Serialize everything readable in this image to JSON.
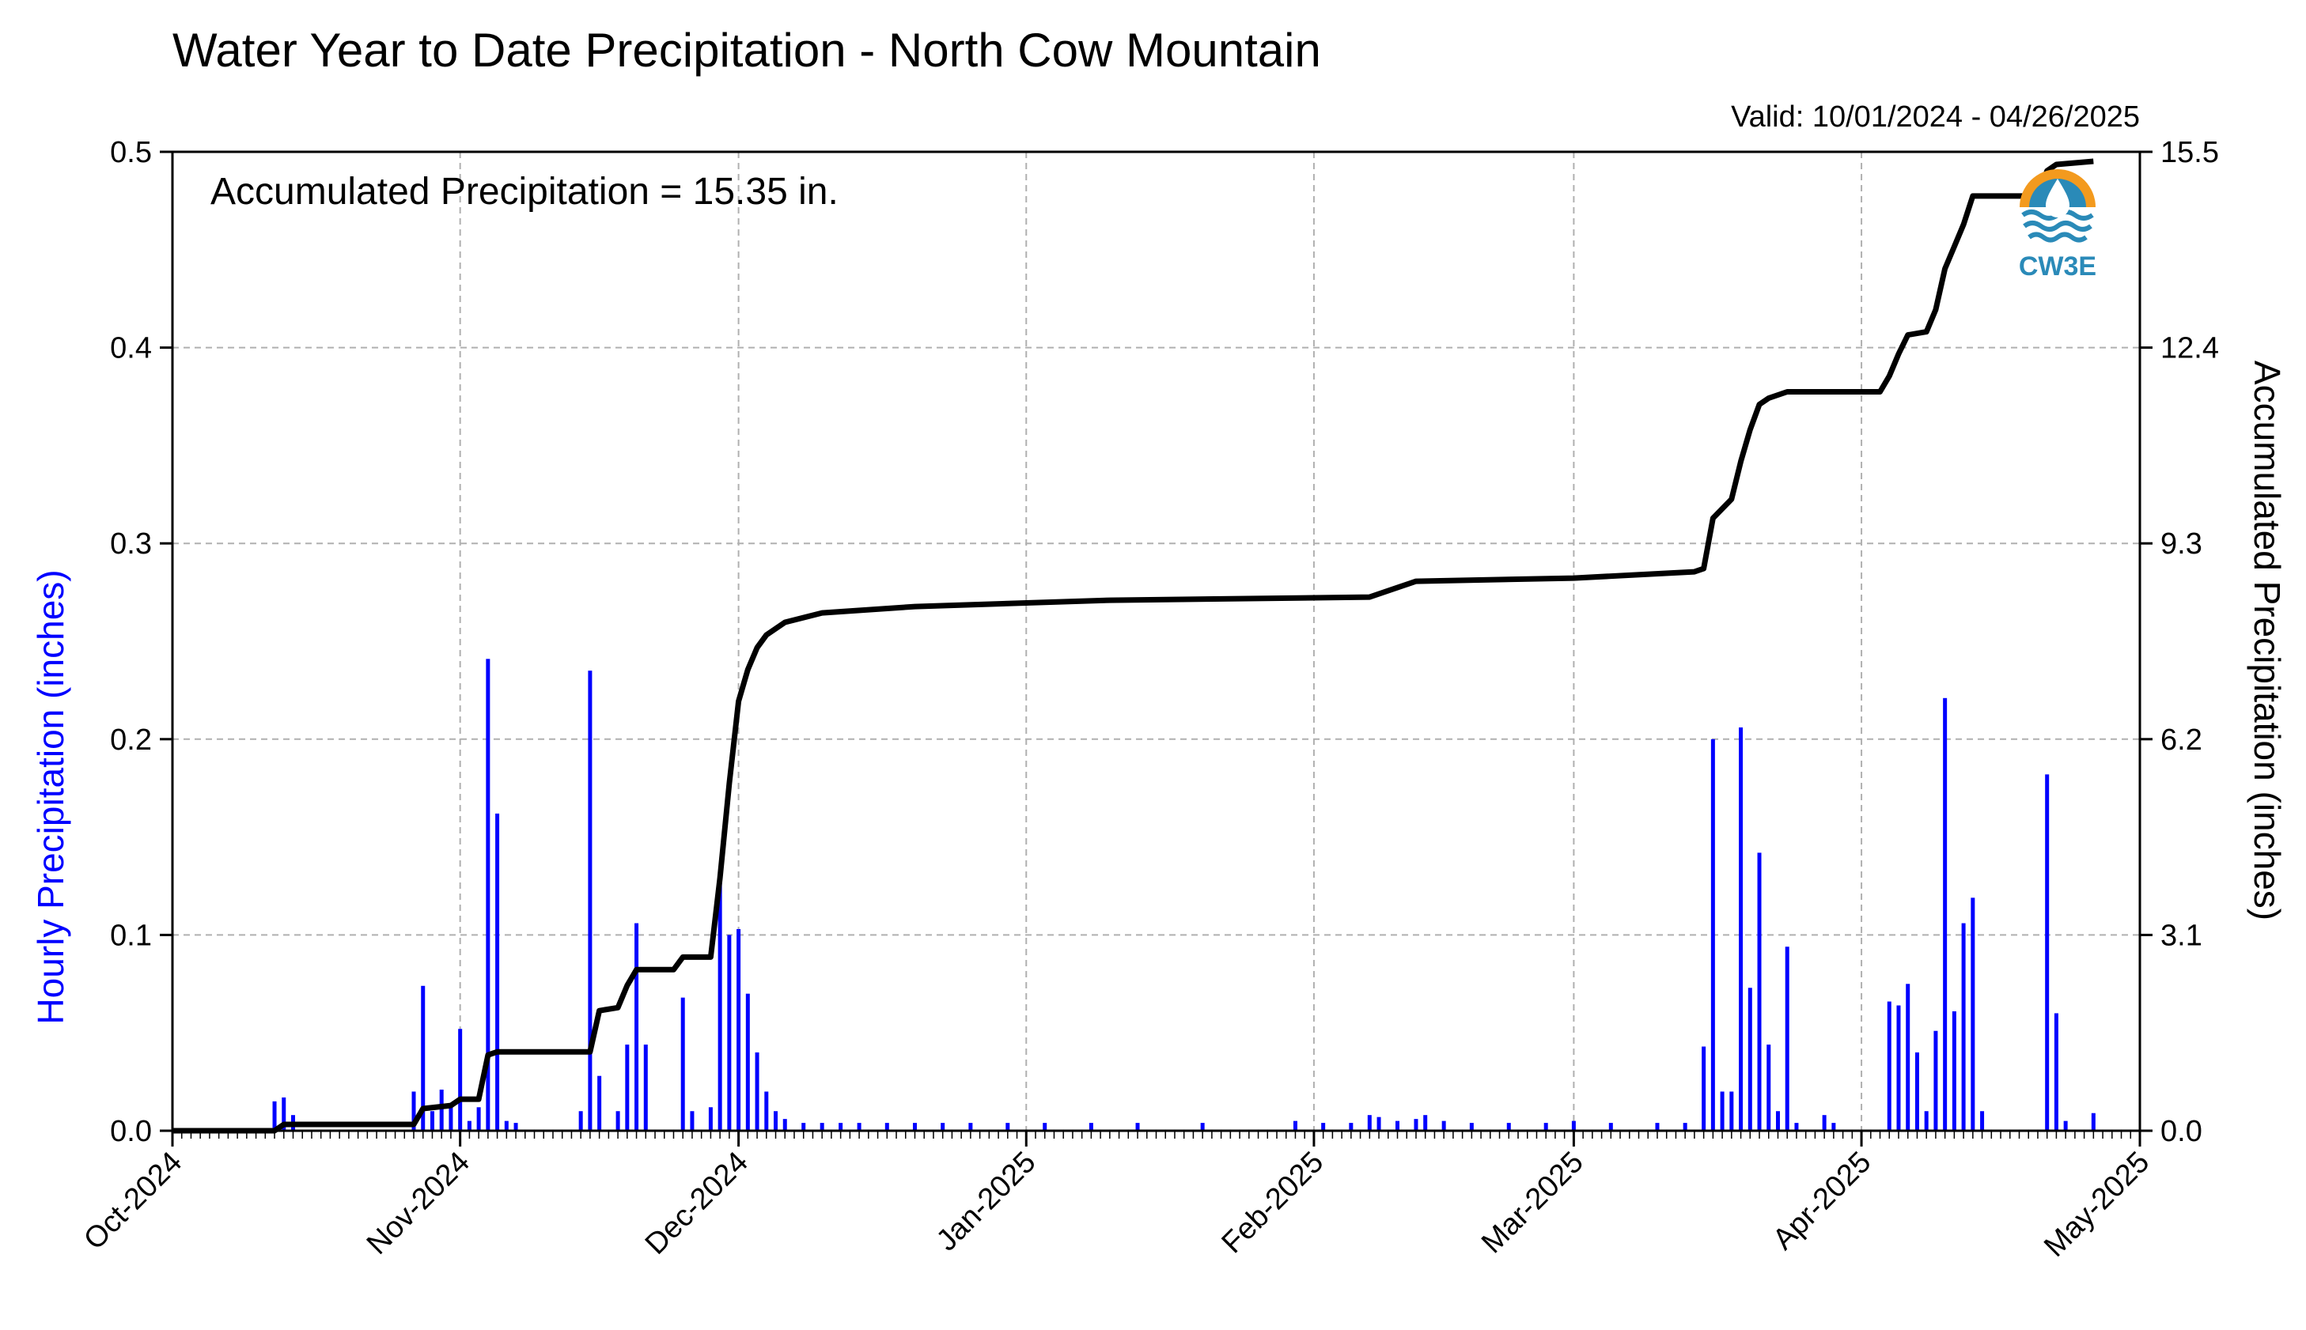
{
  "chart_data": {
    "type": "bar",
    "title": "Water Year to Date Precipitation - North Cow Mountain",
    "subtitle": "Valid: 10/01/2024 - 04/26/2025",
    "annotation": "Accumulated Precipitation = 15.35 in.",
    "logo_text": "CW3E",
    "ylabel_left": "Hourly Precipitation (inches)",
    "ylabel_right": "Accumulated Precipitation (inches)",
    "ylim_left": [
      0,
      0.5
    ],
    "ylim_right": [
      0,
      15.5
    ],
    "xlim": [
      "2024-10-01",
      "2025-05-01"
    ],
    "grid": true,
    "colors": {
      "hourly": "#0000ff",
      "accumulated": "#000000",
      "ylabel_left": "#0000ff",
      "grid": "#b0b0b0",
      "logo_blue": "#2a8ab8",
      "logo_orange": "#f39a1e"
    },
    "x_ticks": [
      "Oct-2024",
      "Nov-2024",
      "Dec-2024",
      "Jan-2025",
      "Feb-2025",
      "Mar-2025",
      "Apr-2025",
      "May-2025"
    ],
    "y_ticks_left": [
      "0.0",
      "0.1",
      "0.2",
      "0.3",
      "0.4",
      "0.5"
    ],
    "y_ticks_right": [
      "0.0",
      "3.1",
      "6.2",
      "9.3",
      "12.4",
      "15.5"
    ],
    "series": [
      {
        "name": "Hourly Precipitation",
        "type": "bar",
        "axis": "left",
        "points": [
          [
            "2024-10-12",
            0.015
          ],
          [
            "2024-10-13",
            0.017
          ],
          [
            "2024-10-14",
            0.008
          ],
          [
            "2024-10-27",
            0.02
          ],
          [
            "2024-10-28",
            0.074
          ],
          [
            "2024-10-29",
            0.01
          ],
          [
            "2024-10-30",
            0.021
          ],
          [
            "2024-10-31",
            0.012
          ],
          [
            "2024-11-01",
            0.052
          ],
          [
            "2024-11-02",
            0.005
          ],
          [
            "2024-11-03",
            0.012
          ],
          [
            "2024-11-04",
            0.241
          ],
          [
            "2024-11-05",
            0.162
          ],
          [
            "2024-11-06",
            0.005
          ],
          [
            "2024-11-07",
            0.004
          ],
          [
            "2024-11-14",
            0.01
          ],
          [
            "2024-11-15",
            0.235
          ],
          [
            "2024-11-16",
            0.028
          ],
          [
            "2024-11-18",
            0.01
          ],
          [
            "2024-11-19",
            0.044
          ],
          [
            "2024-11-20",
            0.106
          ],
          [
            "2024-11-21",
            0.044
          ],
          [
            "2024-11-25",
            0.068
          ],
          [
            "2024-11-26",
            0.01
          ],
          [
            "2024-11-28",
            0.012
          ],
          [
            "2024-11-29",
            0.127
          ],
          [
            "2024-11-30",
            0.1
          ],
          [
            "2024-12-01",
            0.103
          ],
          [
            "2024-12-02",
            0.07
          ],
          [
            "2024-12-03",
            0.04
          ],
          [
            "2024-12-04",
            0.02
          ],
          [
            "2024-12-05",
            0.01
          ],
          [
            "2024-12-06",
            0.006
          ],
          [
            "2024-12-08",
            0.004
          ],
          [
            "2024-12-10",
            0.004
          ],
          [
            "2024-12-12",
            0.004
          ],
          [
            "2024-12-14",
            0.004
          ],
          [
            "2024-12-17",
            0.004
          ],
          [
            "2024-12-20",
            0.004
          ],
          [
            "2024-12-23",
            0.004
          ],
          [
            "2024-12-26",
            0.004
          ],
          [
            "2024-12-30",
            0.004
          ],
          [
            "2025-01-03",
            0.004
          ],
          [
            "2025-01-08",
            0.004
          ],
          [
            "2025-01-13",
            0.004
          ],
          [
            "2025-01-20",
            0.004
          ],
          [
            "2025-01-30",
            0.005
          ],
          [
            "2025-02-02",
            0.004
          ],
          [
            "2025-02-05",
            0.004
          ],
          [
            "2025-02-07",
            0.008
          ],
          [
            "2025-02-08",
            0.007
          ],
          [
            "2025-02-10",
            0.005
          ],
          [
            "2025-02-12",
            0.006
          ],
          [
            "2025-02-13",
            0.008
          ],
          [
            "2025-02-15",
            0.005
          ],
          [
            "2025-02-18",
            0.004
          ],
          [
            "2025-02-22",
            0.004
          ],
          [
            "2025-02-26",
            0.004
          ],
          [
            "2025-03-01",
            0.005
          ],
          [
            "2025-03-05",
            0.004
          ],
          [
            "2025-03-10",
            0.004
          ],
          [
            "2025-03-13",
            0.004
          ],
          [
            "2025-03-15",
            0.043
          ],
          [
            "2025-03-16",
            0.2
          ],
          [
            "2025-03-17",
            0.02
          ],
          [
            "2025-03-18",
            0.02
          ],
          [
            "2025-03-19",
            0.206
          ],
          [
            "2025-03-20",
            0.073
          ],
          [
            "2025-03-21",
            0.142
          ],
          [
            "2025-03-22",
            0.044
          ],
          [
            "2025-03-23",
            0.01
          ],
          [
            "2025-03-24",
            0.094
          ],
          [
            "2025-03-25",
            0.004
          ],
          [
            "2025-03-28",
            0.008
          ],
          [
            "2025-03-29",
            0.004
          ],
          [
            "2025-04-04",
            0.066
          ],
          [
            "2025-04-05",
            0.064
          ],
          [
            "2025-04-06",
            0.075
          ],
          [
            "2025-04-07",
            0.04
          ],
          [
            "2025-04-08",
            0.01
          ],
          [
            "2025-04-09",
            0.051
          ],
          [
            "2025-04-10",
            0.221
          ],
          [
            "2025-04-11",
            0.061
          ],
          [
            "2025-04-12",
            0.106
          ],
          [
            "2025-04-13",
            0.119
          ],
          [
            "2025-04-14",
            0.01
          ],
          [
            "2025-04-21",
            0.182
          ],
          [
            "2025-04-22",
            0.06
          ],
          [
            "2025-04-23",
            0.005
          ],
          [
            "2025-04-26",
            0.009
          ]
        ]
      },
      {
        "name": "Accumulated Precipitation",
        "type": "line",
        "axis": "right",
        "points": [
          [
            "2024-10-01",
            0.0
          ],
          [
            "2024-10-12",
            0.0
          ],
          [
            "2024-10-13",
            0.1
          ],
          [
            "2024-10-27",
            0.1
          ],
          [
            "2024-10-28",
            0.35
          ],
          [
            "2024-10-31",
            0.4
          ],
          [
            "2024-11-01",
            0.5
          ],
          [
            "2024-11-03",
            0.5
          ],
          [
            "2024-11-04",
            1.2
          ],
          [
            "2024-11-05",
            1.25
          ],
          [
            "2024-11-15",
            1.25
          ],
          [
            "2024-11-16",
            1.9
          ],
          [
            "2024-11-18",
            1.95
          ],
          [
            "2024-11-19",
            2.3
          ],
          [
            "2024-11-20",
            2.55
          ],
          [
            "2024-11-24",
            2.55
          ],
          [
            "2024-11-25",
            2.75
          ],
          [
            "2024-11-28",
            2.75
          ],
          [
            "2024-11-29",
            4.0
          ],
          [
            "2024-11-30",
            5.5
          ],
          [
            "2024-12-01",
            6.8
          ],
          [
            "2024-12-02",
            7.3
          ],
          [
            "2024-12-03",
            7.65
          ],
          [
            "2024-12-04",
            7.85
          ],
          [
            "2024-12-06",
            8.05
          ],
          [
            "2024-12-10",
            8.2
          ],
          [
            "2024-12-20",
            8.3
          ],
          [
            "2025-01-10",
            8.4
          ],
          [
            "2025-02-07",
            8.45
          ],
          [
            "2025-02-10",
            8.6
          ],
          [
            "2025-02-12",
            8.7
          ],
          [
            "2025-03-01",
            8.75
          ],
          [
            "2025-03-14",
            8.85
          ],
          [
            "2025-03-15",
            8.9
          ],
          [
            "2025-03-16",
            9.7
          ],
          [
            "2025-03-17",
            9.85
          ],
          [
            "2025-03-18",
            10.0
          ],
          [
            "2025-03-19",
            10.6
          ],
          [
            "2025-03-20",
            11.1
          ],
          [
            "2025-03-21",
            11.5
          ],
          [
            "2025-03-22",
            11.6
          ],
          [
            "2025-03-23",
            11.65
          ],
          [
            "2025-03-24",
            11.7
          ],
          [
            "2025-03-25",
            11.7
          ],
          [
            "2025-04-03",
            11.7
          ],
          [
            "2025-04-04",
            11.95
          ],
          [
            "2025-04-05",
            12.3
          ],
          [
            "2025-04-06",
            12.6
          ],
          [
            "2025-04-08",
            12.65
          ],
          [
            "2025-04-09",
            13.0
          ],
          [
            "2025-04-10",
            13.65
          ],
          [
            "2025-04-11",
            14.0
          ],
          [
            "2025-04-12",
            14.35
          ],
          [
            "2025-04-13",
            14.8
          ],
          [
            "2025-04-20",
            14.8
          ],
          [
            "2025-04-21",
            15.2
          ],
          [
            "2025-04-22",
            15.3
          ],
          [
            "2025-04-26",
            15.35
          ]
        ]
      }
    ]
  }
}
